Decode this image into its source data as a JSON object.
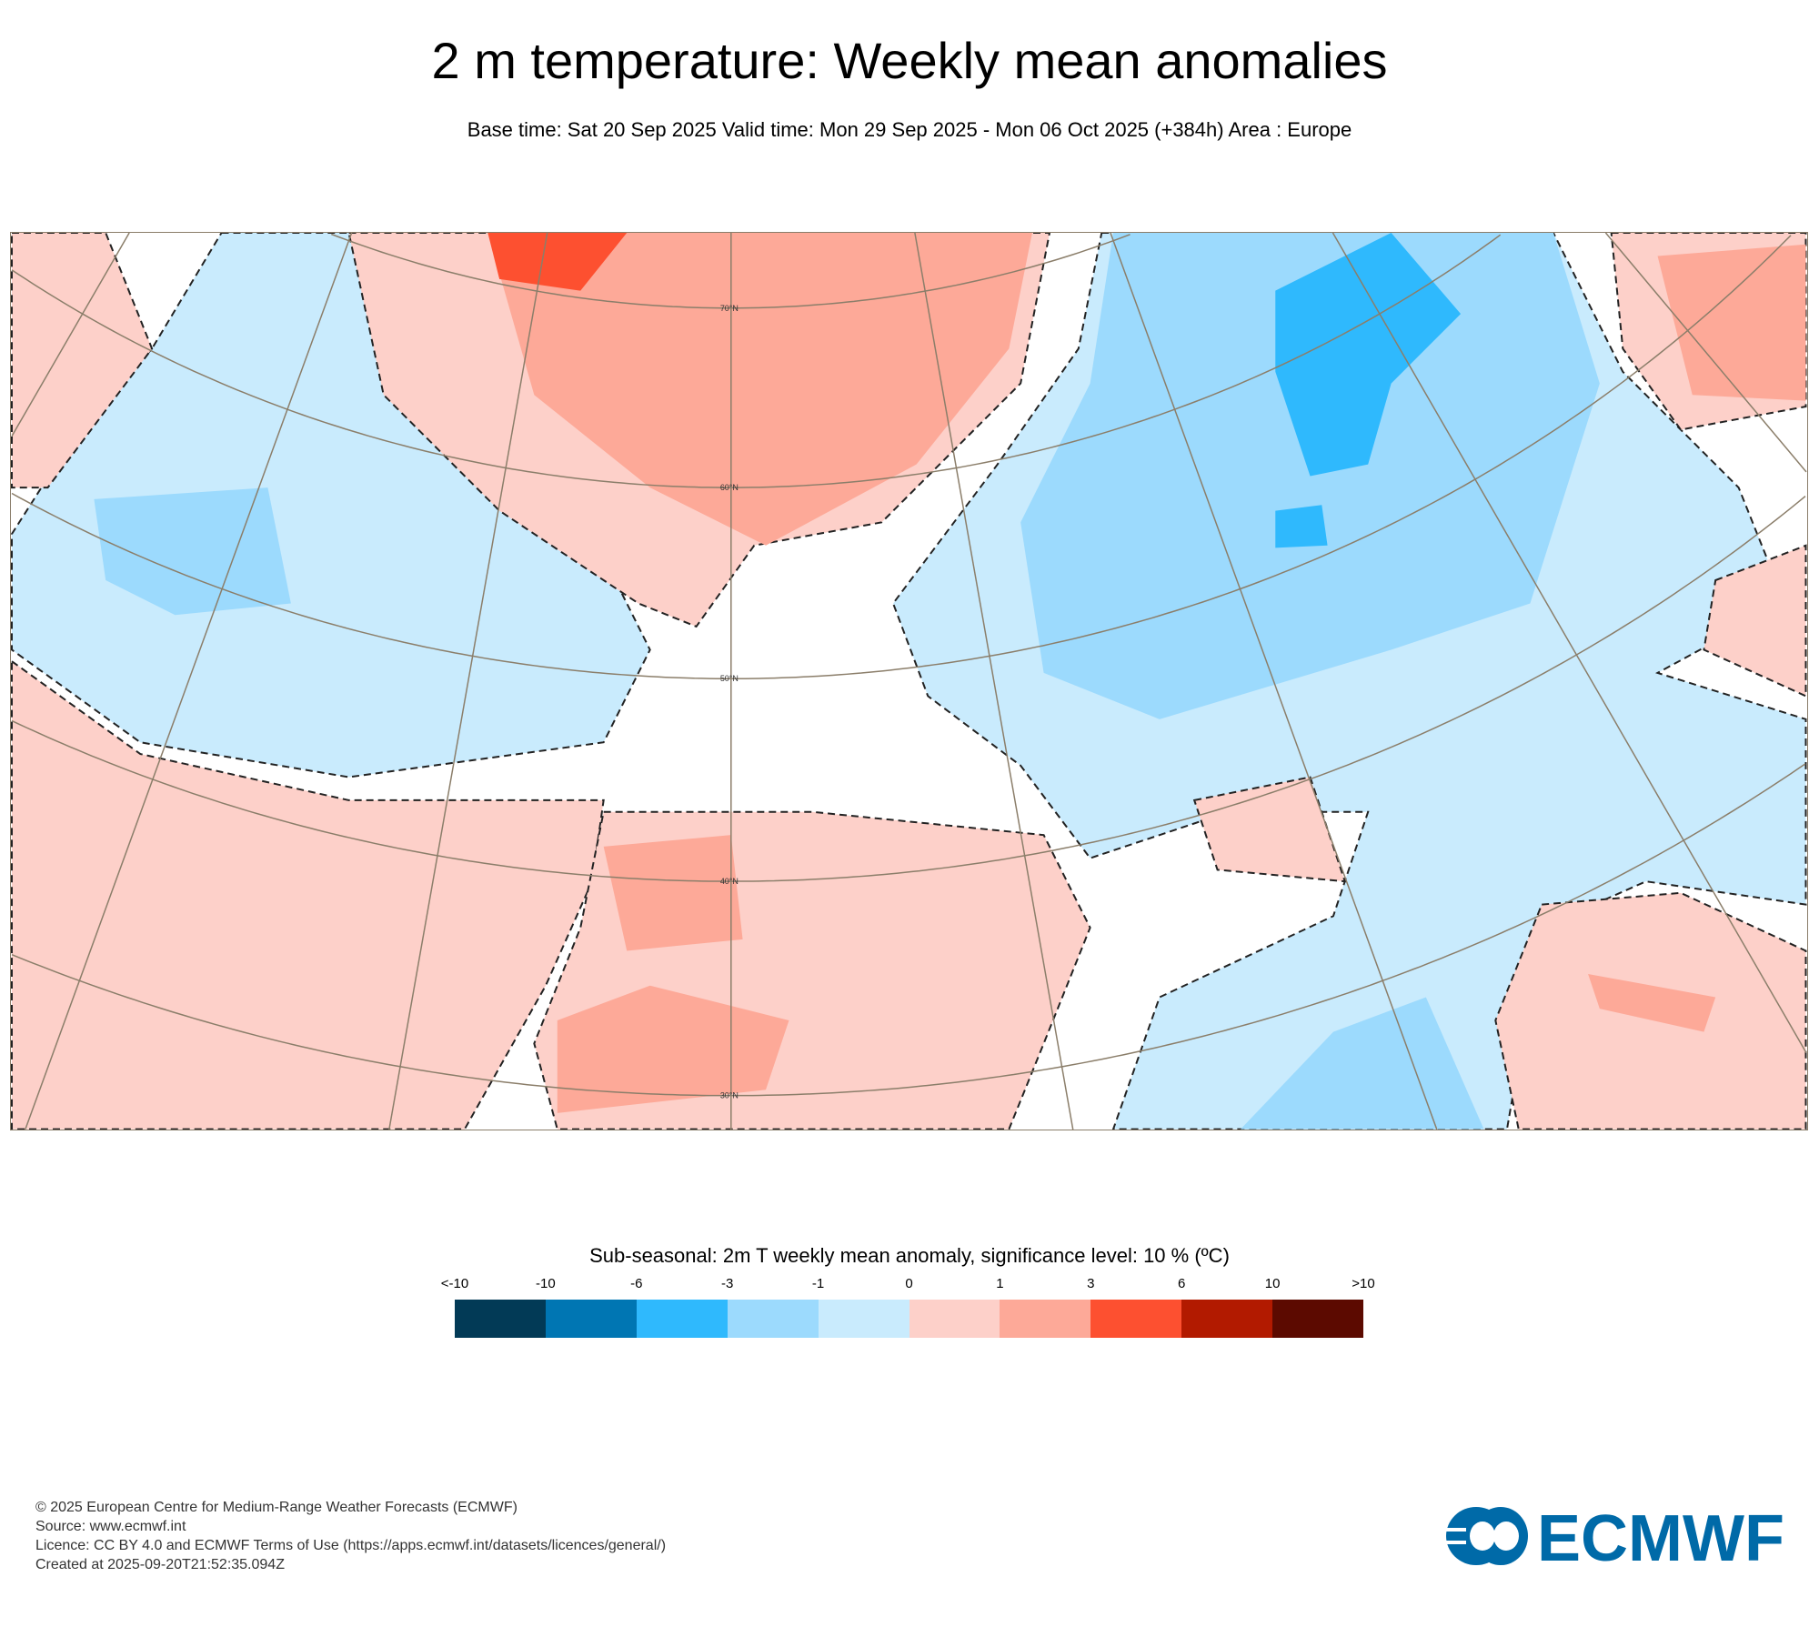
{
  "header": {
    "title": "2 m temperature: Weekly mean anomalies",
    "subtitle": "Base time: Sat 20 Sep 2025 Valid time: Mon 29 Sep 2025 - Mon 06 Oct 2025 (+384h) Area : Europe"
  },
  "map": {
    "lat_labels": [
      "70°N",
      "60°N",
      "50°N",
      "40°N",
      "30°N"
    ],
    "graticule_color": "#8b7e6a"
  },
  "legend": {
    "title": "Sub-seasonal: 2m T weekly mean anomaly, significance level: 10 % (ºC)",
    "labels": [
      "<-10",
      "-10",
      "-6",
      "-3",
      "-1",
      "0",
      "1",
      "3",
      "6",
      "10",
      ">10"
    ],
    "colors": [
      "#023a56",
      "#0076b3",
      "#2fb9fd",
      "#9cdafd",
      "#c9ebfd",
      "#fdd0c9",
      "#fda998",
      "#fd5030",
      "#b21a00",
      "#5c0a00"
    ]
  },
  "footer": {
    "lines": [
      "© 2025 European Centre for Medium-Range Weather Forecasts (ECMWF)",
      "Source: www.ecmwf.int",
      "Licence: CC BY 4.0 and ECMWF Terms of Use (https://apps.ecmwf.int/datasets/licences/general/)",
      "Created at 2025-09-20T21:52:35.094Z"
    ],
    "logo_text": "ECMWF",
    "logo_color": "#006aa8"
  }
}
